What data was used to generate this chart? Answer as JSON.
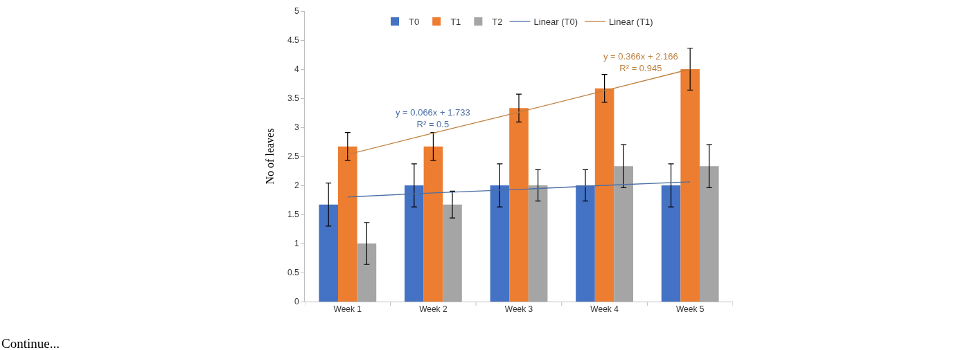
{
  "chart_data": {
    "type": "bar",
    "ylabel": "No of leaves",
    "categories": [
      "Week 1",
      "Week 2",
      "Week 3",
      "Week 4",
      "Week 5"
    ],
    "series": [
      {
        "name": "T0",
        "color": "#4472c4",
        "values": [
          1.67,
          2,
          2,
          2,
          2
        ],
        "errors": [
          0.37,
          0.37,
          0.37,
          0.27,
          0.37
        ]
      },
      {
        "name": "T1",
        "color": "#ed7d31",
        "values": [
          2.67,
          2.67,
          3.33,
          3.67,
          4
        ],
        "errors": [
          0.24,
          0.24,
          0.24,
          0.24,
          0.36
        ]
      },
      {
        "name": "T2",
        "color": "#a5a5a5",
        "values": [
          1,
          1.67,
          2,
          2.33,
          2.33
        ],
        "errors": [
          0.36,
          0.23,
          0.27,
          0.37,
          0.37
        ]
      },
      {
        "name": "Linear (T0)",
        "type": "line",
        "color": "#4a6fa5",
        "values": [
          1.8,
          1.87,
          1.93,
          2.0,
          2.06
        ]
      },
      {
        "name": "Linear (T1)",
        "type": "line",
        "color": "#c0803f",
        "values": [
          2.53,
          2.9,
          3.26,
          3.63,
          4.0
        ]
      }
    ],
    "ylim": [
      0,
      5
    ],
    "yticks": [
      0,
      0.5,
      1,
      1.5,
      2,
      2.5,
      3,
      3.5,
      4,
      4.5,
      5
    ],
    "legend": "top",
    "annotations": [
      "y = 0.066x + 1.733\nR² = 0.5",
      "y = 0.366x + 2.166\nR² = 0.945",
      "Continue..."
    ]
  }
}
